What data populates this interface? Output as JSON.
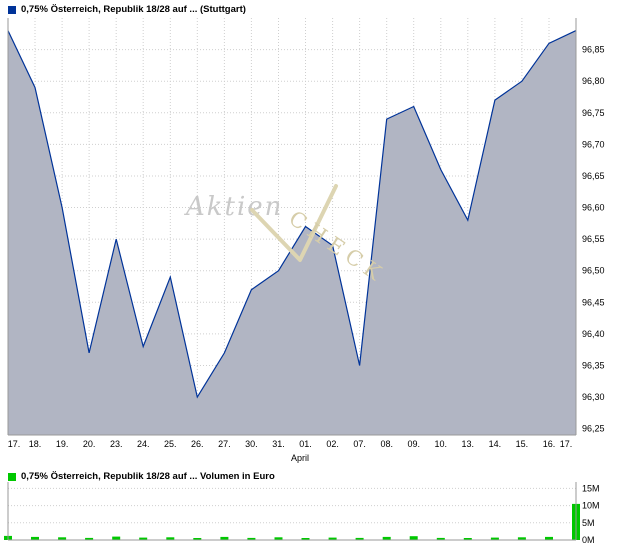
{
  "price": {
    "legend": "0,75% Österreich, Republik 18/28 auf ... (Stuttgart)",
    "color": "#003399"
  },
  "volume": {
    "legend": "0,75% Österreich, Republik 18/28 auf ... Volumen in Euro",
    "color": "#00c800"
  },
  "watermark": {
    "part1": "Aktien",
    "part2": "CHECK"
  },
  "chart_data": [
    {
      "type": "area",
      "title": "0,75% Österreich, Republik 18/28 auf ... (Stuttgart)",
      "x_labels": [
        "17.",
        "18.",
        "19.",
        "20.",
        "23.",
        "24.",
        "25.",
        "26.",
        "27.",
        "30.",
        "31.",
        "01.",
        "02.",
        "07.",
        "08.",
        "09.",
        "10.",
        "13.",
        "14.",
        "15.",
        "16.",
        "17."
      ],
      "month_label": "April",
      "values": [
        96.88,
        96.79,
        96.6,
        96.37,
        96.55,
        96.38,
        96.49,
        96.3,
        96.37,
        96.47,
        96.5,
        96.57,
        96.54,
        96.35,
        96.74,
        96.76,
        96.66,
        96.58,
        96.77,
        96.8,
        96.86,
        96.88
      ],
      "y_ticks": [
        96.25,
        96.3,
        96.35,
        96.4,
        96.45,
        96.5,
        96.55,
        96.6,
        96.65,
        96.7,
        96.75,
        96.8,
        96.85
      ],
      "y_tick_labels": [
        "96,25",
        "96,30",
        "96,35",
        "96,40",
        "96,45",
        "96,50",
        "96,55",
        "96,60",
        "96,65",
        "96,70",
        "96,75",
        "96,80",
        "96,85"
      ],
      "ylim": [
        96.24,
        96.9
      ],
      "line_color": "#003399",
      "fill_color": "#b1b5c3",
      "grid": true,
      "legend_position": "top-left"
    },
    {
      "type": "bar",
      "title": "0,75% Österreich, Republik 18/28 auf ... Volumen in Euro",
      "values": [
        1.2,
        0.9,
        0.8,
        0.6,
        1.0,
        0.7,
        0.8,
        0.5,
        0.9,
        0.6,
        0.8,
        0.5,
        0.7,
        0.6,
        0.9,
        1.1,
        0.6,
        0.5,
        0.7,
        0.8,
        0.9,
        10.5
      ],
      "unit": "M",
      "y_ticks": [
        0,
        5,
        10,
        15
      ],
      "y_tick_labels": [
        "0M",
        "5M",
        "10M",
        "15M"
      ],
      "ylim": [
        0,
        16
      ],
      "bar_color": "#00c800",
      "grid": true
    }
  ]
}
